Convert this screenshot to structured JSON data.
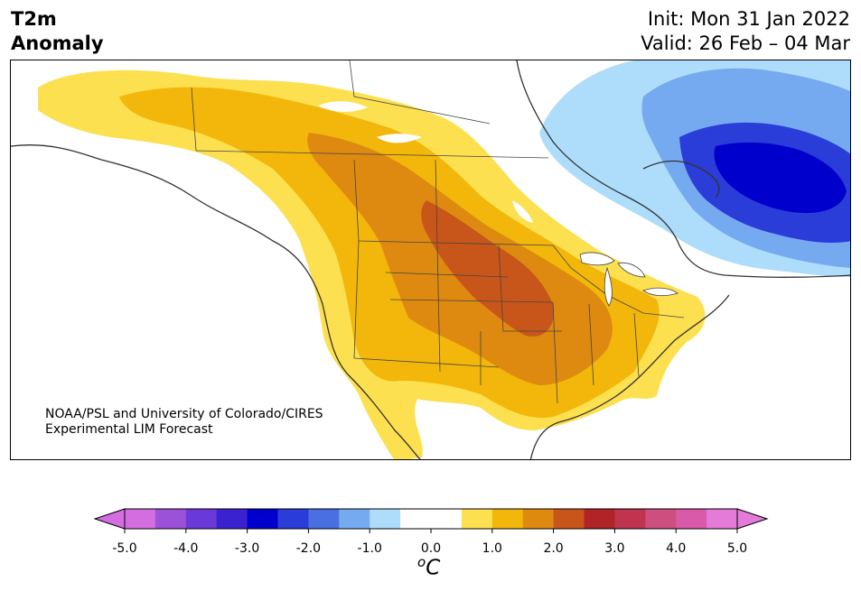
{
  "title": {
    "line1": "T2m",
    "line2": "Anomaly"
  },
  "init_text": "Init: Mon 31 Jan 2022",
  "valid_text": "Valid: 26 Feb – 04 Mar",
  "credit": {
    "line1": "NOAA/PSL and University of Colorado/CIRES",
    "line2": "Experimental LIM Forecast"
  },
  "colorbar": {
    "ticks": [
      "-5.0",
      "-4.0",
      "-3.0",
      "-2.0",
      "-1.0",
      "0.0",
      "1.0",
      "2.0",
      "3.0",
      "4.0",
      "5.0"
    ],
    "unit_base": "C",
    "unit_sup": "o",
    "colors": [
      "#d46ee0",
      "#9b52d9",
      "#6a3ad8",
      "#3b22cf",
      "#0000cd",
      "#2a3dd8",
      "#4a6fe0",
      "#76aaf0",
      "#aedcfb",
      "#ffffff",
      "#ffffff",
      "#fde050",
      "#f2b70a",
      "#de8a10",
      "#c8561a",
      "#b02326",
      "#c03450",
      "#cc4f80",
      "#d95aa8",
      "#e57bd8"
    ],
    "under_color": "#d46ee0",
    "over_color": "#e57bd8"
  }
}
